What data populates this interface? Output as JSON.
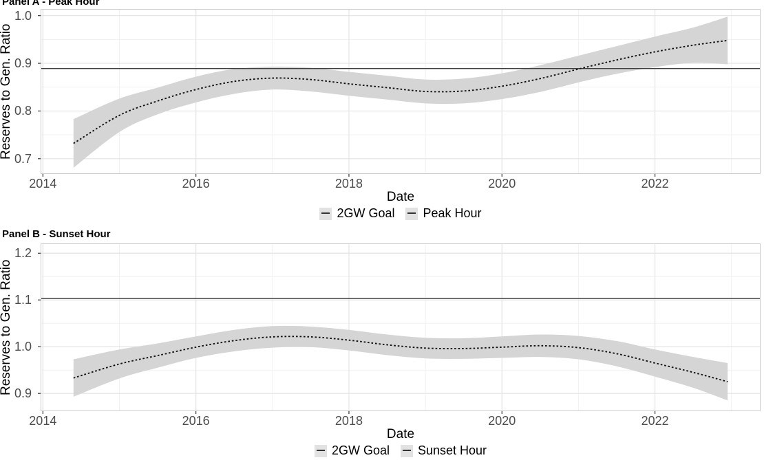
{
  "figure_kind": "two-panel smoothed time-series (ggplot-style) with confidence bands",
  "colors": {
    "background": "#ffffff",
    "band": "#d5d5d5",
    "trend_line": "#111111",
    "goal_line": "#3d3d3d",
    "grid_major": "#e3e3e3",
    "grid_minor": "#f1f1f1",
    "panel_border": "#cccccc",
    "axis_tick": "#333333",
    "tick_text": "#4d4d4d",
    "text": "#000000",
    "legend_key_bg": "#e2e2e2"
  },
  "chart_data": [
    {
      "type": "line",
      "title": "Panel A - Peak Hour",
      "xlabel": "Date",
      "ylabel": "Reserves to Gen. Ratio",
      "grid": true,
      "legend_position": "bottom",
      "legend": [
        {
          "label": "2GW Goal",
          "key": "solid"
        },
        {
          "label": "Peak Hour",
          "key": "dashed"
        }
      ],
      "xlim": [
        2013.97,
        2023.38
      ],
      "ylim": [
        0.668,
        1.014
      ],
      "xticks": [
        2014,
        2016,
        2018,
        2020,
        2022
      ],
      "xtick_labels": [
        "2014",
        "2016",
        "2018",
        "2020",
        "2022"
      ],
      "yticks": [
        0.7,
        0.8,
        0.9,
        1.0
      ],
      "ytick_labels": [
        "0.7",
        "0.8",
        "0.9",
        "1.0"
      ],
      "x_minor": [
        2015,
        2017,
        2019,
        2021,
        2023
      ],
      "y_minor": [
        0.75,
        0.85,
        0.95
      ],
      "x": [
        2014.4,
        2015,
        2015.5,
        2016,
        2016.5,
        2017,
        2017.5,
        2018,
        2018.5,
        2019,
        2019.5,
        2020,
        2020.5,
        2021,
        2021.5,
        2022,
        2022.5,
        2022.95
      ],
      "series": [
        {
          "name": "Peak Hour",
          "style": "dotted-smooth-with-ci",
          "values": [
            0.732,
            0.791,
            0.821,
            0.845,
            0.862,
            0.869,
            0.866,
            0.857,
            0.849,
            0.841,
            0.842,
            0.852,
            0.868,
            0.888,
            0.907,
            0.924,
            0.938,
            0.948
          ],
          "ci_upper": [
            0.783,
            0.826,
            0.849,
            0.872,
            0.888,
            0.893,
            0.891,
            0.882,
            0.874,
            0.866,
            0.868,
            0.879,
            0.896,
            0.916,
            0.936,
            0.956,
            0.975,
            0.998
          ],
          "ci_lower": [
            0.681,
            0.756,
            0.793,
            0.818,
            0.836,
            0.845,
            0.841,
            0.832,
            0.824,
            0.816,
            0.816,
            0.825,
            0.84,
            0.86,
            0.878,
            0.892,
            0.901,
            0.898
          ]
        },
        {
          "name": "2GW Goal",
          "style": "solid-hline",
          "value": 0.889
        }
      ]
    },
    {
      "type": "line",
      "title": "Panel B - Sunset Hour",
      "xlabel": "Date",
      "ylabel": "Reserves to Gen. Ratio",
      "grid": true,
      "legend_position": "bottom",
      "legend": [
        {
          "label": "2GW Goal",
          "key": "solid"
        },
        {
          "label": "Sunset Hour",
          "key": "dashed"
        }
      ],
      "xlim": [
        2013.97,
        2023.38
      ],
      "ylim": [
        0.862,
        1.221
      ],
      "xticks": [
        2014,
        2016,
        2018,
        2020,
        2022
      ],
      "xtick_labels": [
        "2014",
        "2016",
        "2018",
        "2020",
        "2022"
      ],
      "yticks": [
        0.9,
        1.0,
        1.1,
        1.2
      ],
      "ytick_labels": [
        "0.9",
        "1.0",
        "1.1",
        "1.2"
      ],
      "x_minor": [
        2015,
        2017,
        2019,
        2021,
        2023
      ],
      "y_minor": [
        0.95,
        1.05,
        1.15
      ],
      "x": [
        2014.4,
        2015,
        2015.5,
        2016,
        2016.5,
        2017,
        2017.5,
        2018,
        2018.5,
        2019,
        2019.5,
        2020,
        2020.5,
        2021,
        2021.5,
        2022,
        2022.5,
        2022.95
      ],
      "series": [
        {
          "name": "Sunset Hour",
          "style": "dotted-smooth-with-ci",
          "values": [
            0.933,
            0.963,
            0.981,
            0.999,
            1.013,
            1.021,
            1.021,
            1.014,
            1.004,
            0.997,
            0.996,
            0.999,
            1.002,
            0.998,
            0.985,
            0.965,
            0.945,
            0.925
          ],
          "ci_upper": [
            0.973,
            0.994,
            1.007,
            1.022,
            1.036,
            1.044,
            1.043,
            1.036,
            1.026,
            1.019,
            1.018,
            1.022,
            1.026,
            1.023,
            1.012,
            0.994,
            0.978,
            0.965
          ],
          "ci_lower": [
            0.893,
            0.932,
            0.955,
            0.976,
            0.99,
            0.998,
            0.999,
            0.992,
            0.982,
            0.975,
            0.974,
            0.976,
            0.978,
            0.973,
            0.958,
            0.936,
            0.912,
            0.885
          ]
        },
        {
          "name": "2GW Goal",
          "style": "solid-hline",
          "value": 1.103
        }
      ]
    }
  ]
}
